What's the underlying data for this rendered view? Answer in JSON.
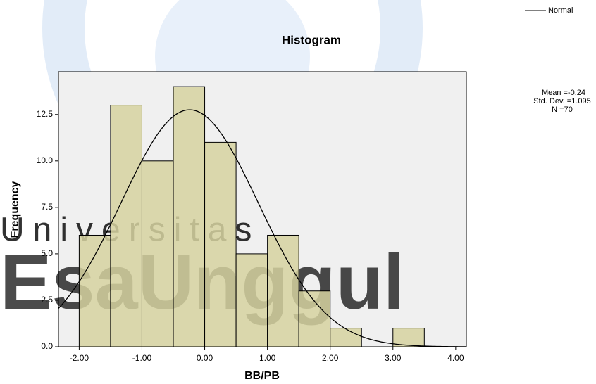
{
  "chart_data": {
    "type": "histogram",
    "title": "Histogram",
    "x_label": "BB/PB",
    "y_label": "Frequency",
    "bins": [
      -2.0,
      -1.5,
      -1.0,
      -0.5,
      0.0,
      0.5,
      1.0,
      1.5,
      2.0,
      2.5,
      3.0,
      3.5
    ],
    "values": [
      6,
      13,
      10,
      14,
      11,
      5,
      6,
      3,
      1,
      0,
      1
    ],
    "color": "#d6d2a0",
    "xlim": [
      -2.33,
      4.17
    ],
    "ylim": [
      0,
      14.8
    ],
    "xticks": [
      {
        "value": -2,
        "label": "-2.00"
      },
      {
        "value": -1,
        "label": "-1.00"
      },
      {
        "value": 0,
        "label": "0.00"
      },
      {
        "value": 1,
        "label": "1.00"
      },
      {
        "value": 2,
        "label": "2.00"
      },
      {
        "value": 3,
        "label": "3.00"
      },
      {
        "value": 4,
        "label": "4.00"
      }
    ],
    "yticks": [
      {
        "value": 0,
        "label": "0.0"
      },
      2.5,
      {
        "value": 5,
        "label": "5.0"
      },
      7.5,
      {
        "value": 10,
        "label": "10.0"
      },
      12.5
    ],
    "normal": {
      "name": "Normal",
      "mean": -0.24,
      "std": 1.095,
      "n": 70,
      "mean_label": "Mean =",
      "std_label": "Std. Dev. =",
      "n_label": "N ="
    },
    "watermark": [
      "Universitas",
      "EsaUnggul"
    ]
  }
}
